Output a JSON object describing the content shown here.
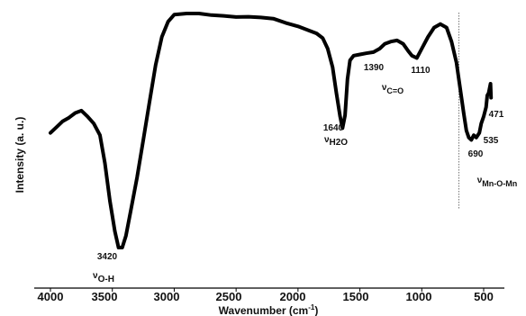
{
  "chart_data": {
    "type": "line",
    "title": "",
    "xlabel": "Wavenumber (cm",
    "xlabel_superscript": "-1",
    "xlabel_close": ")",
    "ylabel": "Intensity (a. u.)",
    "xlim": [
      4000,
      400
    ],
    "x_reversed": true,
    "y_ticks_shown": false,
    "grid": false,
    "x_ticks": [
      "4000",
      "3500",
      "3000",
      "2500",
      "2000",
      "1500",
      "1000",
      "500"
    ],
    "reference_line_x": 700,
    "series": [
      {
        "name": "",
        "color": "#000000",
        "points": [
          [
            4000,
            0.49
          ],
          [
            3950,
            0.515
          ],
          [
            3900,
            0.54
          ],
          [
            3850,
            0.555
          ],
          [
            3800,
            0.575
          ],
          [
            3750,
            0.585
          ],
          [
            3700,
            0.56
          ],
          [
            3650,
            0.53
          ],
          [
            3600,
            0.48
          ],
          [
            3560,
            0.36
          ],
          [
            3520,
            0.2
          ],
          [
            3480,
            0.07
          ],
          [
            3450,
            0.0
          ],
          [
            3420,
            0.0
          ],
          [
            3390,
            0.05
          ],
          [
            3350,
            0.16
          ],
          [
            3300,
            0.3
          ],
          [
            3250,
            0.46
          ],
          [
            3200,
            0.62
          ],
          [
            3150,
            0.78
          ],
          [
            3100,
            0.9
          ],
          [
            3050,
            0.965
          ],
          [
            3000,
            0.995
          ],
          [
            2900,
            1.0
          ],
          [
            2800,
            1.0
          ],
          [
            2700,
            0.993
          ],
          [
            2600,
            0.99
          ],
          [
            2500,
            0.985
          ],
          [
            2400,
            0.986
          ],
          [
            2300,
            0.983
          ],
          [
            2200,
            0.978
          ],
          [
            2100,
            0.96
          ],
          [
            2000,
            0.945
          ],
          [
            1900,
            0.925
          ],
          [
            1850,
            0.915
          ],
          [
            1800,
            0.895
          ],
          [
            1760,
            0.85
          ],
          [
            1720,
            0.77
          ],
          [
            1690,
            0.66
          ],
          [
            1660,
            0.56
          ],
          [
            1640,
            0.51
          ],
          [
            1620,
            0.565
          ],
          [
            1600,
            0.72
          ],
          [
            1580,
            0.8
          ],
          [
            1550,
            0.82
          ],
          [
            1500,
            0.825
          ],
          [
            1450,
            0.83
          ],
          [
            1390,
            0.835
          ],
          [
            1340,
            0.85
          ],
          [
            1300,
            0.87
          ],
          [
            1250,
            0.88
          ],
          [
            1200,
            0.885
          ],
          [
            1150,
            0.87
          ],
          [
            1110,
            0.84
          ],
          [
            1080,
            0.82
          ],
          [
            1040,
            0.81
          ],
          [
            1000,
            0.85
          ],
          [
            950,
            0.9
          ],
          [
            900,
            0.94
          ],
          [
            850,
            0.955
          ],
          [
            800,
            0.94
          ],
          [
            760,
            0.88
          ],
          [
            720,
            0.79
          ],
          [
            690,
            0.68
          ],
          [
            660,
            0.57
          ],
          [
            640,
            0.5
          ],
          [
            620,
            0.47
          ],
          [
            600,
            0.46
          ],
          [
            580,
            0.48
          ],
          [
            560,
            0.47
          ],
          [
            535,
            0.49
          ],
          [
            520,
            0.53
          ],
          [
            500,
            0.56
          ],
          [
            480,
            0.6
          ],
          [
            471,
            0.65
          ],
          [
            460,
            0.66
          ],
          [
            445,
            0.7
          ],
          [
            440,
            0.64
          ]
        ]
      }
    ],
    "annotations": [
      {
        "name": "peak-3420",
        "x": 3420,
        "text": "3420",
        "assignment": "ν",
        "assignment_sub": "O-H"
      },
      {
        "name": "peak-1640",
        "x": 1640,
        "text": "1640",
        "assignment": "ν",
        "assignment_sub": "H2O"
      },
      {
        "name": "peak-1390",
        "x": 1390,
        "text": "1390",
        "assignment": "",
        "assignment_sub": ""
      },
      {
        "name": "peak-1110",
        "x": 1110,
        "text": "1110",
        "assignment": "ν",
        "assignment_sub": "C=O"
      },
      {
        "name": "peak-690",
        "x": 690,
        "text": "690",
        "assignment": "ν",
        "assignment_sub": "Mn-O-Mn"
      },
      {
        "name": "peak-535",
        "x": 535,
        "text": "535",
        "assignment": "",
        "assignment_sub": ""
      },
      {
        "name": "peak-471",
        "x": 471,
        "text": "471",
        "assignment": "",
        "assignment_sub": ""
      }
    ]
  }
}
